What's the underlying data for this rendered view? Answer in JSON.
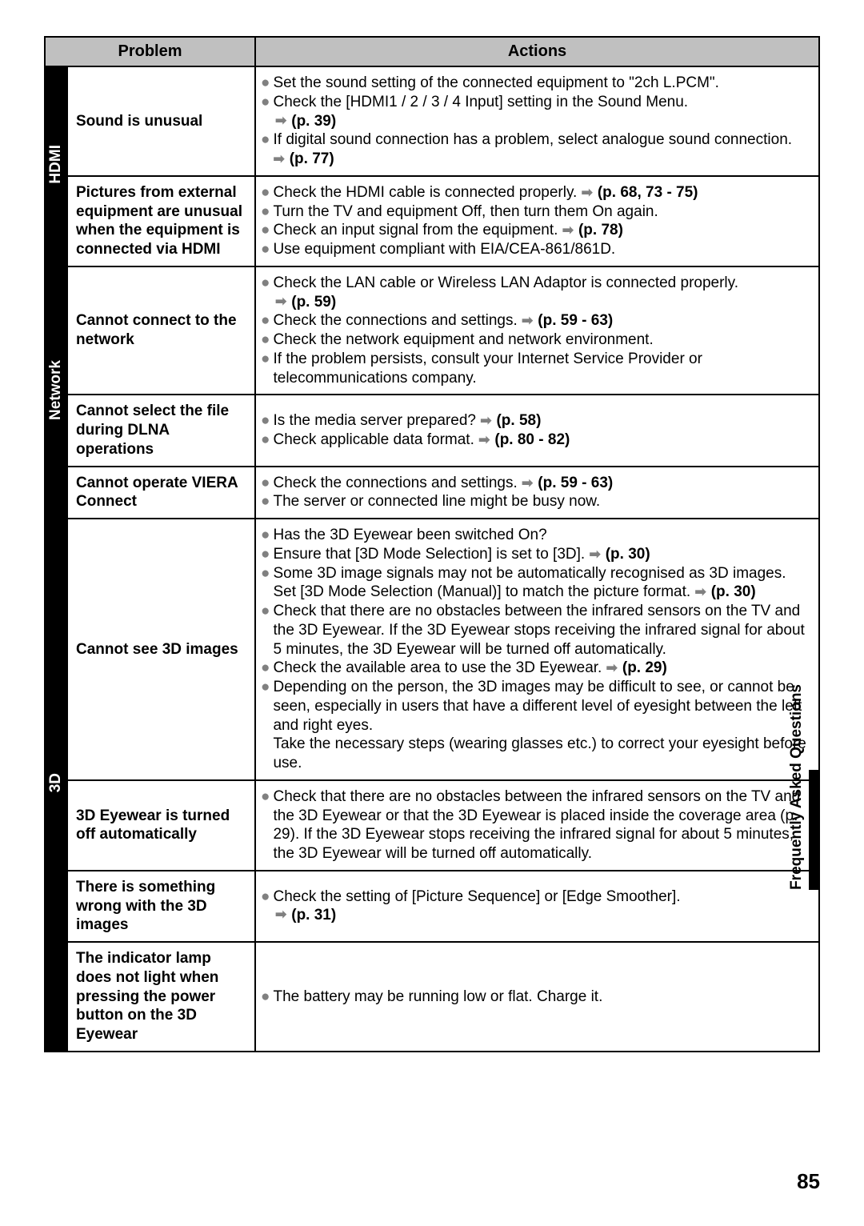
{
  "header": {
    "problem": "Problem",
    "actions": "Actions"
  },
  "side_tab": "Frequently Asked Questions",
  "page_number": "85",
  "categories": [
    {
      "name": "HDMI",
      "rows": [
        {
          "problem": "Sound is unusual",
          "actions": [
            {
              "type": "bullet",
              "text": "Set the sound setting of the connected equipment to \"2ch L.PCM\"."
            },
            {
              "type": "bullet",
              "text": "Check the [HDMI1 / 2 / 3 / 4 Input] setting in the Sound Menu."
            },
            {
              "type": "arrow",
              "ref": "(p. 39)"
            },
            {
              "type": "bullet",
              "text": "If digital sound connection has a problem, select analogue sound connection. ",
              "inline_ref": "(p. 77)"
            }
          ]
        },
        {
          "problem": "Pictures from external equipment are unusual when the equipment is connected via HDMI",
          "actions": [
            {
              "type": "bullet",
              "text": "Check the HDMI cable is connected properly. ",
              "inline_ref": "(p. 68, 73 - 75)"
            },
            {
              "type": "bullet",
              "text": "Turn the TV and equipment Off, then turn them On again."
            },
            {
              "type": "bullet",
              "text": "Check an input signal from the equipment. ",
              "inline_ref": "(p. 78)"
            },
            {
              "type": "bullet",
              "text": "Use equipment compliant with EIA/CEA-861/861D."
            }
          ]
        }
      ]
    },
    {
      "name": "Network",
      "rows": [
        {
          "problem": "Cannot connect to the network",
          "actions": [
            {
              "type": "bullet",
              "text": "Check the LAN cable or Wireless LAN Adaptor is connected properly."
            },
            {
              "type": "arrow",
              "ref": "(p. 59)"
            },
            {
              "type": "bullet",
              "text": "Check the connections and settings. ",
              "inline_ref": "(p. 59 - 63)"
            },
            {
              "type": "bullet",
              "text": "Check the network equipment and network environment."
            },
            {
              "type": "bullet",
              "text": "If the problem persists, consult your Internet Service Provider or telecommunications company."
            }
          ]
        },
        {
          "problem": "Cannot select the file during DLNA operations",
          "actions": [
            {
              "type": "bullet",
              "text": "Is the media server prepared? ",
              "inline_ref": "(p. 58)"
            },
            {
              "type": "bullet",
              "text": "Check applicable data format. ",
              "inline_ref": "(p. 80 - 82)"
            }
          ]
        },
        {
          "problem": "Cannot operate VIERA Connect",
          "actions": [
            {
              "type": "bullet",
              "text": "Check the connections and settings. ",
              "inline_ref": "(p. 59 - 63)"
            },
            {
              "type": "bullet",
              "text": "The server or connected line might be busy now."
            }
          ]
        }
      ]
    },
    {
      "name": "3D",
      "rows": [
        {
          "problem": "Cannot see 3D images",
          "actions": [
            {
              "type": "bullet",
              "text": "Has the 3D Eyewear been switched On?"
            },
            {
              "type": "bullet",
              "text": "Ensure that [3D Mode Selection] is set to [3D]. ",
              "inline_ref": "(p. 30)"
            },
            {
              "type": "bullet",
              "text": "Some 3D image signals may not be automatically recognised as 3D images. Set [3D Mode Selection (Manual)] to match the picture format. ",
              "inline_ref": "(p. 30)"
            },
            {
              "type": "bullet",
              "text": "Check that there are no obstacles between the infrared sensors on the TV and the 3D Eyewear. If the 3D Eyewear stops receiving the infrared signal for about 5 minutes, the 3D Eyewear will be turned off automatically."
            },
            {
              "type": "bullet",
              "text": "Check the available area to use the 3D Eyewear. ",
              "inline_ref": "(p. 29)"
            },
            {
              "type": "bullet",
              "text": "Depending on the person, the 3D images may be difficult to see, or cannot be seen, especially in users that have a different level of eyesight between the left and right eyes.\nTake the necessary steps (wearing glasses etc.) to correct your eyesight before use."
            }
          ]
        },
        {
          "problem": "3D Eyewear is turned off automatically",
          "actions": [
            {
              "type": "bullet",
              "text": "Check that there are no obstacles between the infrared sensors on the TV and the 3D Eyewear or that the 3D Eyewear is placed inside the coverage area (p. 29). If the 3D Eyewear stops receiving the infrared signal for about 5 minutes, the 3D Eyewear will be turned off automatically."
            }
          ]
        },
        {
          "problem": "There is something wrong with the 3D images",
          "actions": [
            {
              "type": "bullet",
              "text": "Check the setting of [Picture Sequence] or [Edge Smoother]."
            },
            {
              "type": "arrow",
              "ref": "(p. 31)"
            }
          ]
        },
        {
          "problem": "The indicator lamp does not light when pressing the power button on the 3D Eyewear",
          "actions": [
            {
              "type": "bullet",
              "text": "The battery may be running low or flat. Charge it."
            }
          ]
        }
      ]
    }
  ]
}
